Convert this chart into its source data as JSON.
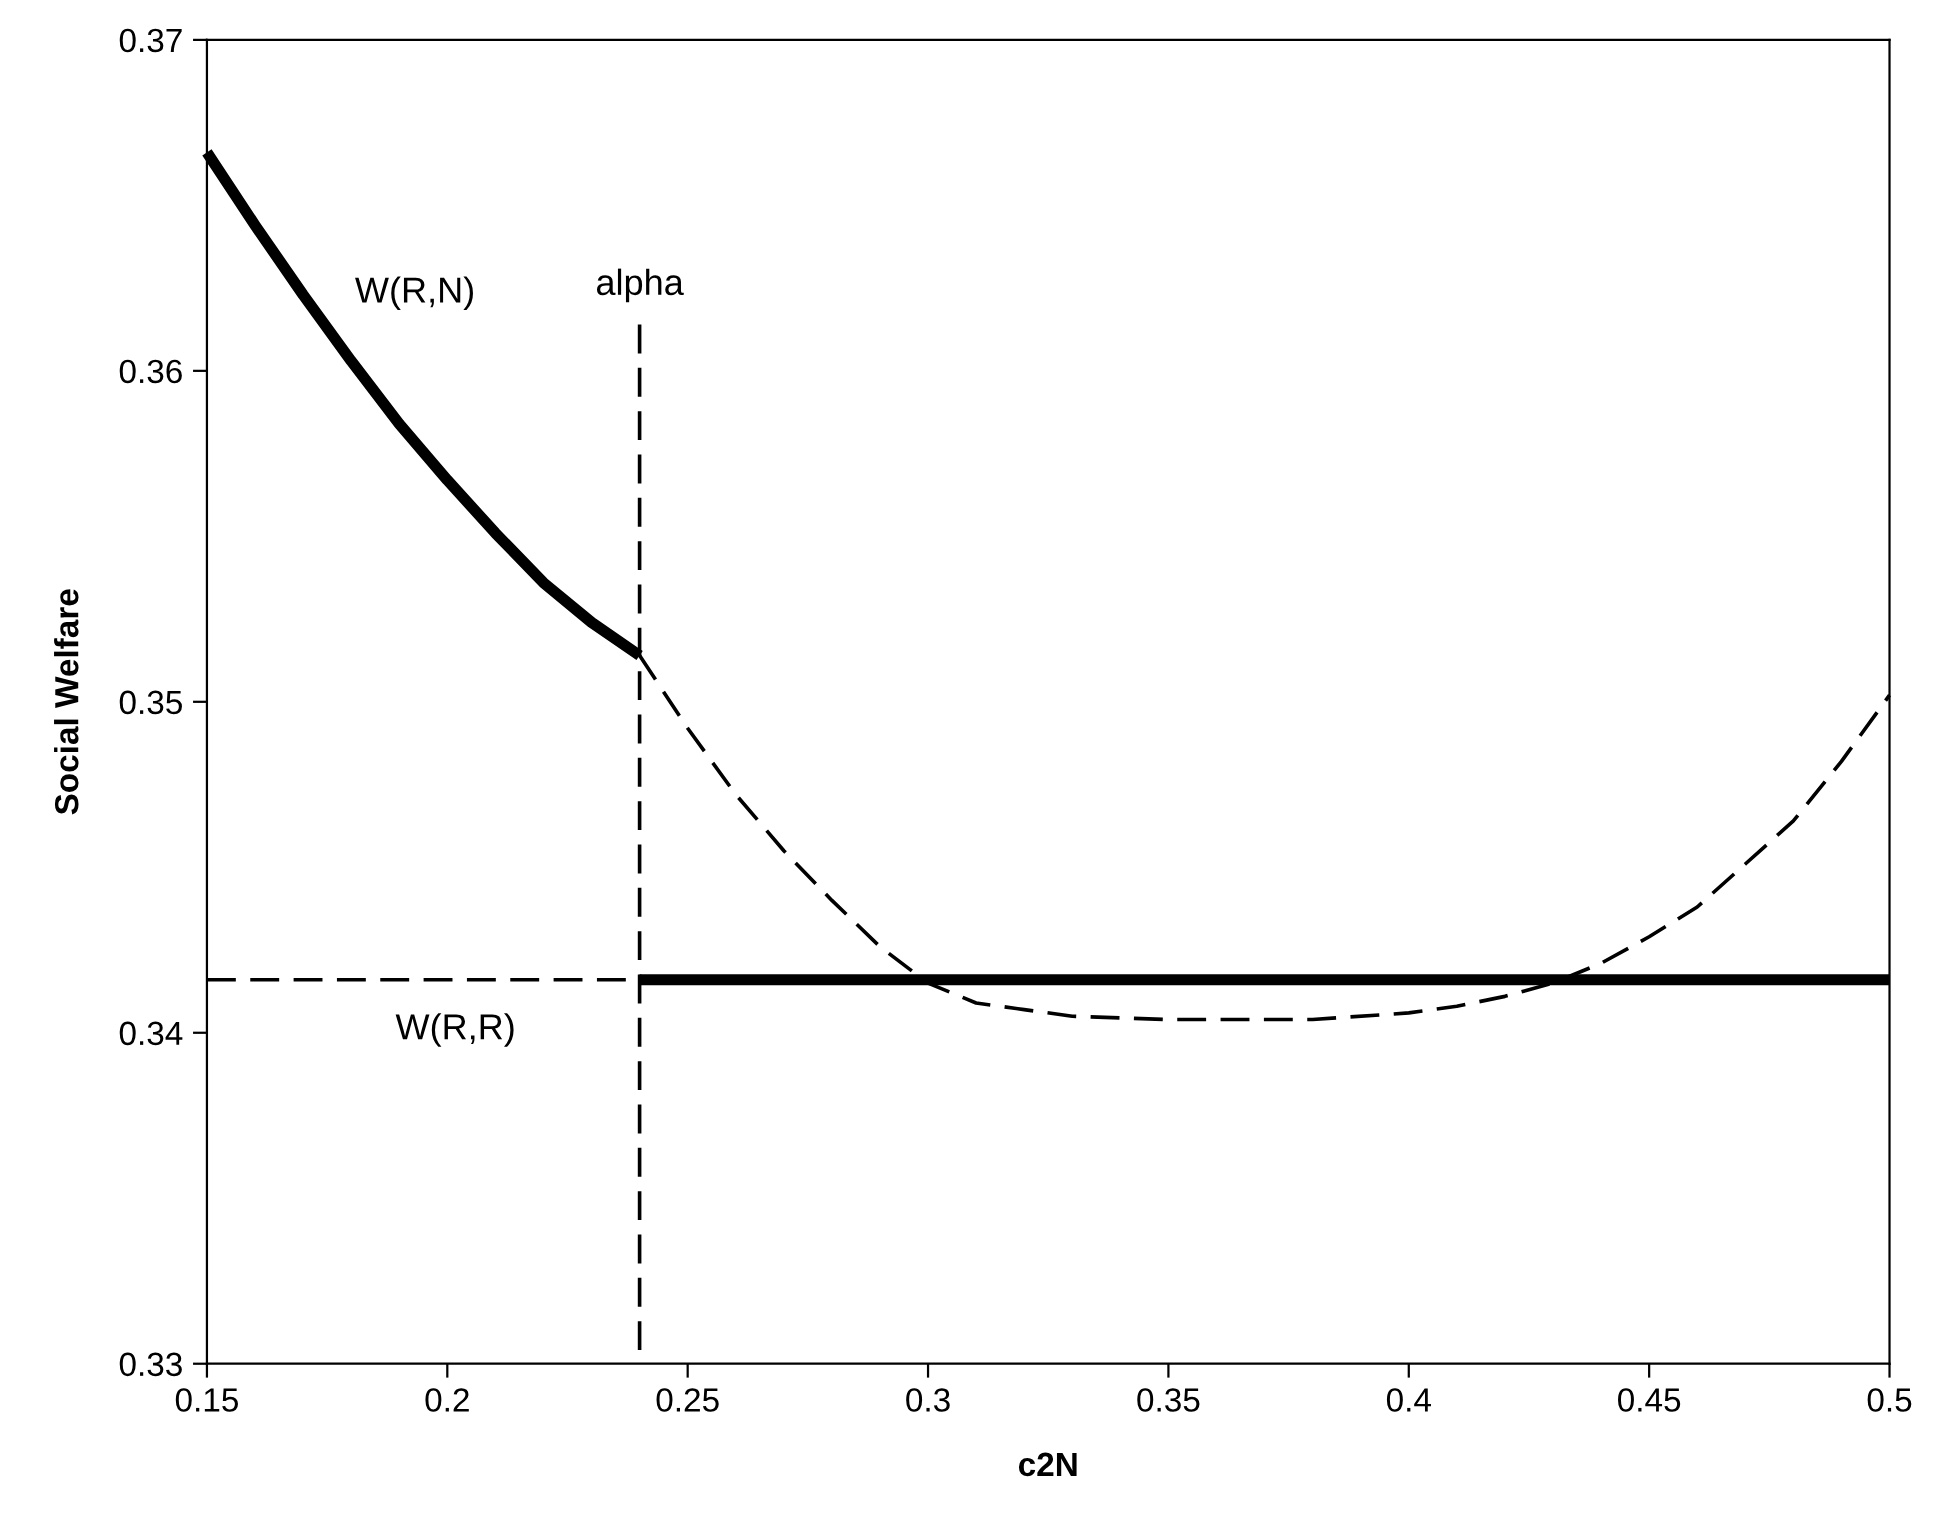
{
  "chart_data": {
    "type": "line",
    "xlabel": "c2N",
    "ylabel": "Social Welfare",
    "xlim": [
      0.15,
      0.5
    ],
    "xticks": [
      0.15,
      0.2,
      0.25,
      0.3,
      0.35,
      0.4,
      0.45,
      0.5
    ],
    "ylim": [
      0.33,
      0.37
    ],
    "yticks": [
      0.33,
      0.34,
      0.35,
      0.36,
      0.37
    ],
    "grid": false,
    "legend": false,
    "marker": "none",
    "series": [
      {
        "color": "#000000",
        "line_style": "solid",
        "x": [
          0.15,
          0.16,
          0.17,
          0.18,
          0.19,
          0.2,
          0.21,
          0.22,
          0.23,
          0.24
        ],
        "values": [
          0.3666,
          0.3644,
          0.3623,
          0.3603,
          0.3584,
          0.3567,
          0.3551,
          0.3536,
          0.3524,
          0.3514
        ]
      },
      {
        "color": "#000000",
        "line_style": "dashed",
        "x": [
          0.24,
          0.25,
          0.26,
          0.27,
          0.28,
          0.29,
          0.3,
          0.31,
          0.32,
          0.33,
          0.35,
          0.365,
          0.38,
          0.4,
          0.41,
          0.42,
          0.43,
          0.44,
          0.45,
          0.46,
          0.47,
          0.48,
          0.49,
          0.5
        ],
        "values": [
          0.3514,
          0.3492,
          0.3472,
          0.3455,
          0.344,
          0.3426,
          0.3415,
          0.3409,
          0.3407,
          0.3405,
          0.3404,
          0.3404,
          0.3404,
          0.3406,
          0.3408,
          0.3411,
          0.3415,
          0.3421,
          0.3429,
          0.3438,
          0.3451,
          0.3464,
          0.3482,
          0.3502
        ]
      },
      {
        "color": "#000000",
        "line_style": "solid",
        "x": [
          0.24,
          0.5
        ],
        "values": [
          0.3416,
          0.3416
        ]
      },
      {
        "color": "#000000",
        "line_style": "dashed",
        "x": [
          0.15,
          0.24
        ],
        "values": [
          0.3416,
          0.3416
        ]
      },
      {
        "color": "#000000",
        "line_style": "dashed",
        "x": [
          0.24,
          0.24
        ],
        "values": [
          0.3614,
          0.33
        ]
      }
    ],
    "annotations": [
      {
        "text": "W(R,N)",
        "x": 0.175,
        "y": 0.3615
      },
      {
        "text": "alpha",
        "x": 0.24,
        "y": 0.3614
      },
      {
        "text": "W(R,R)",
        "x": 0.195,
        "y": 0.3416
      }
    ]
  }
}
